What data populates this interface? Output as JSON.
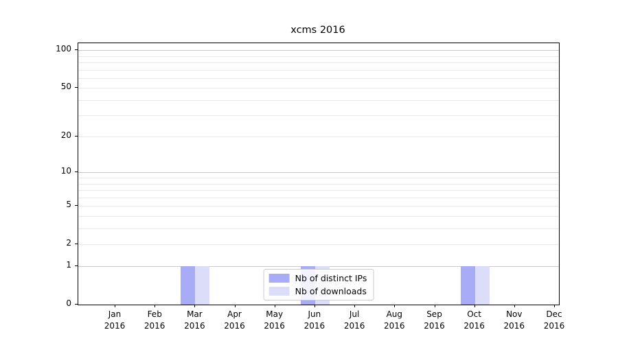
{
  "figure": {
    "title": "xcms 2016"
  },
  "chart_data": {
    "type": "bar",
    "title": "xcms 2016",
    "categories": [
      "Jan 2016",
      "Feb 2016",
      "Mar 2016",
      "Apr 2016",
      "May 2016",
      "Jun 2016",
      "Jul 2016",
      "Aug 2016",
      "Sep 2016",
      "Oct 2016",
      "Nov 2016",
      "Dec 2016"
    ],
    "series": [
      {
        "name": "Nb of distinct IPs",
        "color": "#a8abf5",
        "values": [
          0,
          0,
          1,
          0,
          0,
          1,
          0,
          0,
          0,
          1,
          0,
          0
        ]
      },
      {
        "name": "Nb of downloads",
        "color": "#dcdef9",
        "values": [
          0,
          0,
          1,
          0,
          0,
          1,
          0,
          0,
          0,
          1,
          0,
          0
        ]
      }
    ],
    "xlabel": "",
    "ylabel": "",
    "yscale": "log1p",
    "ylim": [
      0,
      110
    ],
    "y_tick_values": [
      0,
      1,
      2,
      5,
      10,
      20,
      50,
      100
    ],
    "y_major_gridlines": [
      1,
      10,
      100
    ],
    "y_minor_gridlines": [
      2,
      3,
      4,
      5,
      6,
      7,
      8,
      9,
      20,
      30,
      40,
      50,
      60,
      70,
      80,
      90
    ],
    "grid": "on",
    "legend_position": "lower center"
  },
  "colors": {
    "major_grid": "#c9c9c9",
    "minor_grid": "#e9e9e9",
    "spine": "#000000",
    "background": "#ffffff",
    "legend_border": "#cccccc"
  }
}
